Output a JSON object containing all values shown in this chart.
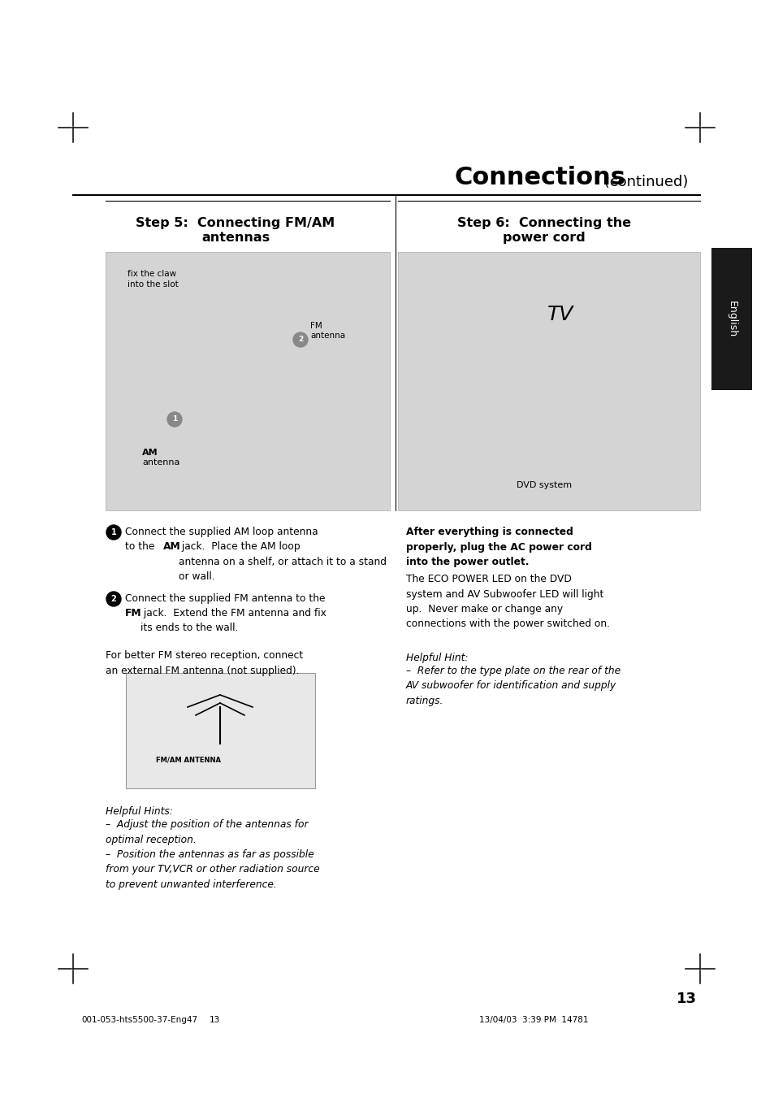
{
  "bg_color": "#ffffff",
  "title_text": "Connections",
  "title_suffix": " (continued)",
  "step5_line1": "Step 5:  Connecting FM/AM",
  "step5_line2": "antennas",
  "step6_line1": "Step 6:  Connecting the",
  "step6_line2": "power cord",
  "english_tab_color": "#1a1a1a",
  "img_left_color": "#d4d4d4",
  "img_right_color": "#d4d4d4",
  "antenna_small_color": "#e8e8e8",
  "step1_text": "Connect the supplied AM loop antenna\nto the AM jack.  Place the AM loop\nantenna on a shelf, or attach it to a stand\nor wall.",
  "step2_text": "Connect the supplied FM antenna to the\nFM jack.  Extend the FM antenna and fix\nits ends to the wall.",
  "step2_extra": "For better FM stereo reception, connect\nan external FM antenna (not supplied).",
  "helpful_hints_title": "Helpful Hints:",
  "helpful_hints_body": "–  Adjust the position of the antennas for\noptimal reception.\n–  Position the antennas as far as possible\nfrom your TV,VCR or other radiation source\nto prevent unwanted interference.",
  "right_bold": "After everything is connected\nproperly, plug the AC power cord\ninto the power outlet.",
  "right_normal": "The ECO POWER LED on the DVD\nsystem and AV Subwoofer LED will light\nup.  Never make or change any\nconnections with the power switched on.",
  "hint_right_title": "Helpful Hint:",
  "hint_right_body": "–  Refer to the type plate on the rear of the\nAV subwoofer for identification and supply\nratings.",
  "page_number": "13",
  "footer_left": "001-053-hts5500-37-Eng47",
  "footer_center": "13",
  "footer_right": "13/04/03  3:39 PM  14781"
}
